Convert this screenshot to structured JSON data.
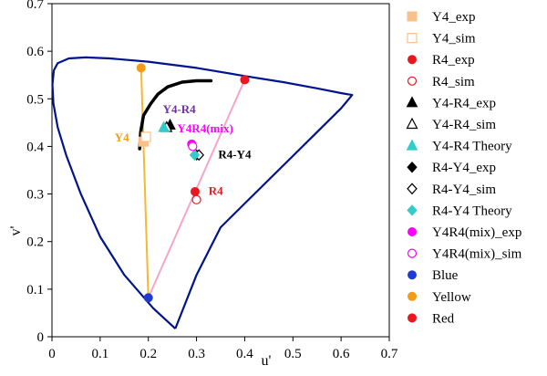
{
  "chart_data": {
    "type": "scatter",
    "xlabel": "u'",
    "ylabel": "v'",
    "xlim": [
      0,
      0.7
    ],
    "ylim": [
      0,
      0.7
    ],
    "x_ticks": [
      "0",
      "0.1",
      "0.2",
      "0.3",
      "0.4",
      "0.5",
      "0.6",
      "0.7"
    ],
    "y_ticks": [
      "0",
      "0.1",
      "0.2",
      "0.3",
      "0.4",
      "0.5",
      "0.6",
      "0.7"
    ],
    "grid": false,
    "legend_position": "right",
    "gamut_lines": [
      {
        "from": "Yellow",
        "to": "Blue",
        "color": "#F5B830"
      },
      {
        "from": "Red",
        "to": "Blue",
        "color": "#F4A6C8"
      }
    ],
    "locus_color": "#00148C",
    "locus": [
      [
        0.256,
        0.017
      ],
      [
        0.21,
        0.06
      ],
      [
        0.15,
        0.13
      ],
      [
        0.1,
        0.21
      ],
      [
        0.06,
        0.3
      ],
      [
        0.03,
        0.38
      ],
      [
        0.012,
        0.44
      ],
      [
        0.003,
        0.49
      ],
      [
        0.001,
        0.53
      ],
      [
        0.004,
        0.56
      ],
      [
        0.012,
        0.575
      ],
      [
        0.035,
        0.585
      ],
      [
        0.07,
        0.587
      ],
      [
        0.12,
        0.585
      ],
      [
        0.2,
        0.578
      ],
      [
        0.3,
        0.565
      ],
      [
        0.4,
        0.548
      ],
      [
        0.48,
        0.535
      ],
      [
        0.55,
        0.522
      ],
      [
        0.6,
        0.512
      ],
      [
        0.623,
        0.508
      ],
      [
        0.6,
        0.48
      ],
      [
        0.55,
        0.43
      ],
      [
        0.5,
        0.38
      ],
      [
        0.45,
        0.33
      ],
      [
        0.4,
        0.28
      ],
      [
        0.35,
        0.23
      ],
      [
        0.3,
        0.13
      ],
      [
        0.256,
        0.017
      ]
    ],
    "thick_curve": [
      [
        0.182,
        0.395
      ],
      [
        0.184,
        0.43
      ],
      [
        0.19,
        0.465
      ],
      [
        0.205,
        0.49
      ],
      [
        0.22,
        0.51
      ],
      [
        0.24,
        0.525
      ],
      [
        0.27,
        0.535
      ],
      [
        0.3,
        0.538
      ],
      [
        0.33,
        0.538
      ]
    ],
    "series": [
      {
        "name": "Y4_exp",
        "marker": "square",
        "filled": true,
        "color": "#F9C089",
        "points": [
          [
            0.19,
            0.41
          ]
        ]
      },
      {
        "name": "Y4_sim",
        "marker": "square",
        "filled": false,
        "color": "#F9C089",
        "points": [
          [
            0.195,
            0.42
          ]
        ]
      },
      {
        "name": "R4_exp",
        "marker": "circle",
        "filled": true,
        "color": "#E8181F",
        "points": [
          [
            0.297,
            0.305
          ]
        ]
      },
      {
        "name": "R4_sim",
        "marker": "circle",
        "filled": false,
        "color": "#E8181F",
        "points": [
          [
            0.3,
            0.288
          ]
        ]
      },
      {
        "name": "Y4-R4_exp",
        "marker": "triangle",
        "filled": true,
        "color": "#000000",
        "points": [
          [
            0.245,
            0.445
          ]
        ]
      },
      {
        "name": "Y4-R4_sim",
        "marker": "triangle",
        "filled": false,
        "color": "#000000",
        "points": [
          [
            0.238,
            0.44
          ]
        ]
      },
      {
        "name": "Y4-R4 Theory",
        "marker": "triangle",
        "filled": true,
        "color": "#33CCCC",
        "points": [
          [
            0.232,
            0.44
          ]
        ]
      },
      {
        "name": "R4-Y4_exp",
        "marker": "diamond",
        "filled": true,
        "color": "#000000",
        "points": [
          [
            0.3,
            0.382
          ]
        ]
      },
      {
        "name": "R4-Y4_sim",
        "marker": "diamond",
        "filled": false,
        "color": "#000000",
        "points": [
          [
            0.305,
            0.382
          ]
        ]
      },
      {
        "name": "R4-Y4 Theory",
        "marker": "diamond",
        "filled": true,
        "color": "#33CCCC",
        "points": [
          [
            0.296,
            0.382
          ]
        ]
      },
      {
        "name": "Y4R4(mix)_exp",
        "marker": "circle",
        "filled": true,
        "color": "#FF00FF",
        "points": [
          [
            0.29,
            0.405
          ]
        ]
      },
      {
        "name": "Y4R4(mix)_sim",
        "marker": "circle",
        "filled": false,
        "color": "#FF00FF",
        "points": [
          [
            0.292,
            0.4
          ]
        ]
      },
      {
        "name": "Blue",
        "marker": "circle",
        "filled": true,
        "color": "#1F3BD1",
        "points": [
          [
            0.2,
            0.082
          ]
        ]
      },
      {
        "name": "Yellow",
        "marker": "circle",
        "filled": true,
        "color": "#F39A17",
        "points": [
          [
            0.185,
            0.565
          ]
        ]
      },
      {
        "name": "Red",
        "marker": "circle",
        "filled": true,
        "color": "#E8181F",
        "points": [
          [
            0.4,
            0.54
          ]
        ]
      }
    ],
    "annotations": [
      {
        "text": "Y4",
        "x": 0.13,
        "y": 0.41,
        "color": "#F39A17"
      },
      {
        "text": "Y4-R4",
        "x": 0.23,
        "y": 0.47,
        "color": "#7030A0"
      },
      {
        "text": "Y4R4(mix)",
        "x": 0.26,
        "y": 0.43,
        "color": "#FF00FF"
      },
      {
        "text": "R4-Y4",
        "x": 0.345,
        "y": 0.375,
        "color": "#000000"
      },
      {
        "text": "R4",
        "x": 0.325,
        "y": 0.298,
        "color": "#E8181F"
      }
    ]
  }
}
